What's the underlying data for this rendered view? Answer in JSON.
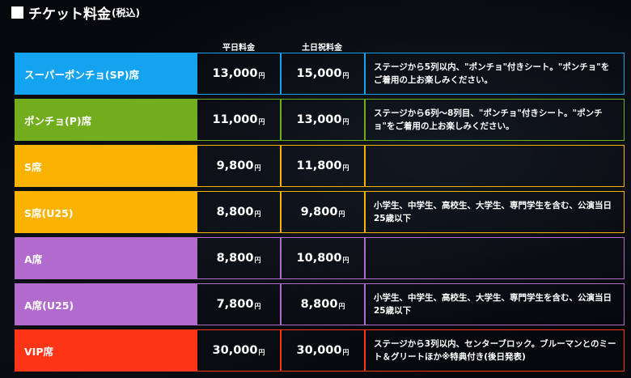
{
  "title": {
    "main": "チケット料金",
    "sub": "(税込)"
  },
  "columns": {
    "weekday": "平日料金",
    "weekend": "土日祝料金"
  },
  "currency": "円",
  "rows": [
    {
      "name": "スーパーポンチョ(SP)席",
      "weekday": "13,000",
      "weekend": "15,000",
      "desc": "ステージから5列以内、\"ポンチョ\"付きシート。\"ポンチョ\"をご着用の上お楽しみください。",
      "color": "#13a3ef"
    },
    {
      "name": "ポンチョ(P)席",
      "weekday": "11,000",
      "weekend": "13,000",
      "desc": "ステージから6列〜8列目、\"ポンチョ\"付きシート。\"ポンチョ\"をご着用の上お楽しみください。",
      "color": "#72ad1d"
    },
    {
      "name": "S席",
      "weekday": "9,800",
      "weekend": "11,800",
      "desc": "",
      "color": "#fbb303"
    },
    {
      "name": "S席(U25)",
      "weekday": "8,800",
      "weekend": "9,800",
      "desc": "小学生、中学生、高校生、大学生、専門学生を含む、公演当日25歳以下",
      "color": "#fbb303"
    },
    {
      "name": "A席",
      "weekday": "8,800",
      "weekend": "10,800",
      "desc": "",
      "color": "#b06bcd"
    },
    {
      "name": "A席(U25)",
      "weekday": "7,800",
      "weekend": "8,800",
      "desc": "小学生、中学生、高校生、大学生、専門学生を含む、公演当日25歳以下",
      "color": "#b06bcd"
    },
    {
      "name": "VIP席",
      "weekday": "30,000",
      "weekend": "30,000",
      "desc": "ステージから3列以内、センターブロック。ブルーマンとのミート＆グリートほか※特典付き(後日発表)",
      "color": "#fe3417"
    }
  ]
}
